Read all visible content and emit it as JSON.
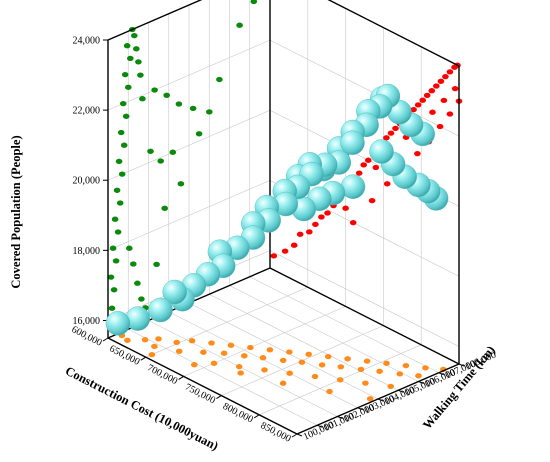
{
  "chart_data": {
    "type": "scatter3d",
    "title": "",
    "xlabel": "Construction Cost (10,000yuan)",
    "ylabel": "Walking Time (km)",
    "zlabel": "Covered Population (People)",
    "x_ticks": [
      "600,000",
      "650,000",
      "700,000",
      "750,000",
      "800,000",
      "850,000"
    ],
    "y_ticks": [
      "100,000",
      "101,000",
      "102,000",
      "103,000",
      "104,000",
      "105,000",
      "106,000",
      "107,000",
      "108,000"
    ],
    "z_ticks": [
      "16,000",
      "18,000",
      "20,000",
      "22,000",
      "24,000"
    ],
    "xlim": [
      600000,
      850000
    ],
    "ylim": [
      100000,
      108000
    ],
    "zlim": [
      15500,
      24000
    ],
    "grid": true,
    "series": [
      {
        "name": "",
        "role": "main-3d",
        "color": "#6cd6d8",
        "marker": "large-sphere",
        "points": [
          [
            605000,
            100300,
            15900
          ],
          [
            618000,
            100800,
            16050
          ],
          [
            632000,
            101400,
            16300
          ],
          [
            645000,
            102000,
            16600
          ],
          [
            640000,
            101800,
            16800
          ],
          [
            652000,
            102300,
            17000
          ],
          [
            660000,
            102700,
            17300
          ],
          [
            672000,
            103000,
            17600
          ],
          [
            665000,
            103100,
            17900
          ],
          [
            680000,
            103400,
            18100
          ],
          [
            690000,
            103800,
            18400
          ],
          [
            685000,
            104000,
            18700
          ],
          [
            700000,
            104200,
            18900
          ],
          [
            695000,
            104300,
            19200
          ],
          [
            712000,
            104600,
            19400
          ],
          [
            708000,
            104700,
            19700
          ],
          [
            720000,
            104900,
            19900
          ],
          [
            715000,
            105100,
            20100
          ],
          [
            730000,
            105200,
            20300
          ],
          [
            725000,
            105300,
            20500
          ],
          [
            740000,
            105500,
            20600
          ],
          [
            735000,
            105600,
            20400
          ],
          [
            750000,
            105800,
            20700
          ],
          [
            745000,
            106000,
            21000
          ],
          [
            760000,
            106100,
            21300
          ],
          [
            755000,
            106300,
            21500
          ],
          [
            768000,
            106500,
            21800
          ],
          [
            765000,
            106700,
            22100
          ],
          [
            775000,
            106900,
            22300
          ],
          [
            780000,
            107100,
            22600
          ],
          [
            770000,
            107200,
            22400
          ],
          [
            790000,
            107300,
            22200
          ],
          [
            800000,
            107500,
            21900
          ],
          [
            810000,
            107700,
            21700
          ],
          [
            785000,
            106600,
            21200
          ],
          [
            795000,
            106800,
            20900
          ],
          [
            805000,
            107000,
            20600
          ],
          [
            815000,
            107300,
            20400
          ],
          [
            820000,
            107600,
            20200
          ],
          [
            825000,
            107800,
            20000
          ],
          [
            758000,
            106200,
            20000
          ],
          [
            745000,
            105700,
            19800
          ],
          [
            735000,
            105400,
            19600
          ],
          [
            725000,
            105000,
            19300
          ]
        ]
      },
      {
        "name": "",
        "role": "projection-xz",
        "color": "#ff0000",
        "marker": "dot",
        "points": [
          [
            605000,
            15900
          ],
          [
            620000,
            16200
          ],
          [
            632000,
            16500
          ],
          [
            640000,
            16900
          ],
          [
            652000,
            17100
          ],
          [
            660000,
            17400
          ],
          [
            668000,
            17700
          ],
          [
            676000,
            17900
          ],
          [
            684000,
            18200
          ],
          [
            690000,
            18500
          ],
          [
            698000,
            18700
          ],
          [
            705000,
            19000
          ],
          [
            712000,
            19300
          ],
          [
            718000,
            19500
          ],
          [
            724000,
            19800
          ],
          [
            730000,
            20000
          ],
          [
            736000,
            20300
          ],
          [
            742000,
            20500
          ],
          [
            748000,
            20700
          ],
          [
            754000,
            20900
          ],
          [
            760000,
            21100
          ],
          [
            766000,
            21300
          ],
          [
            772000,
            21500
          ],
          [
            778000,
            21700
          ],
          [
            784000,
            21900
          ],
          [
            790000,
            22100
          ],
          [
            796000,
            22300
          ],
          [
            802000,
            22500
          ],
          [
            808000,
            22700
          ],
          [
            814000,
            22900
          ],
          [
            820000,
            23100
          ],
          [
            826000,
            23300
          ],
          [
            832000,
            23500
          ],
          [
            838000,
            23700
          ],
          [
            844000,
            23900
          ],
          [
            848000,
            24000
          ],
          [
            700000,
            18300
          ],
          [
            720000,
            19200
          ],
          [
            740000,
            19900
          ],
          [
            760000,
            20500
          ],
          [
            780000,
            21200
          ],
          [
            800000,
            21800
          ],
          [
            815000,
            22300
          ],
          [
            830000,
            22800
          ],
          [
            845000,
            23300
          ],
          [
            710000,
            18000
          ],
          [
            735000,
            18900
          ],
          [
            755000,
            19600
          ],
          [
            775000,
            20200
          ],
          [
            795000,
            20900
          ],
          [
            810000,
            21400
          ],
          [
            825000,
            22000
          ],
          [
            838000,
            22500
          ],
          [
            850000,
            23000
          ]
        ]
      },
      {
        "name": "",
        "role": "projection-yz",
        "color": "#0a8a0a",
        "marker": "dot",
        "points": [
          [
            100100,
            15900
          ],
          [
            100200,
            16300
          ],
          [
            100300,
            16800
          ],
          [
            100150,
            17200
          ],
          [
            100400,
            17600
          ],
          [
            100250,
            18000
          ],
          [
            100500,
            18400
          ],
          [
            100350,
            18800
          ],
          [
            100600,
            19200
          ],
          [
            100450,
            19600
          ],
          [
            100700,
            20000
          ],
          [
            100550,
            20400
          ],
          [
            100800,
            20800
          ],
          [
            100650,
            21200
          ],
          [
            100900,
            21600
          ],
          [
            100750,
            22000
          ],
          [
            101000,
            22400
          ],
          [
            100850,
            22800
          ],
          [
            101100,
            23200
          ],
          [
            100950,
            23600
          ],
          [
            101200,
            24000
          ],
          [
            101300,
            23800
          ],
          [
            101400,
            23400
          ],
          [
            101500,
            23000
          ],
          [
            101600,
            22600
          ],
          [
            102300,
            22000
          ],
          [
            102900,
            21700
          ],
          [
            103500,
            21300
          ],
          [
            104200,
            21000
          ],
          [
            105000,
            20700
          ],
          [
            101700,
            21900
          ],
          [
            102100,
            20300
          ],
          [
            102600,
            19900
          ],
          [
            103200,
            20000
          ],
          [
            101050,
            17800
          ],
          [
            101250,
            17300
          ],
          [
            101450,
            16700
          ],
          [
            101650,
            16200
          ],
          [
            101850,
            15900
          ],
          [
            102400,
            17000
          ],
          [
            102800,
            18500
          ],
          [
            103600,
            19000
          ],
          [
            104500,
            20200
          ],
          [
            105500,
            21500
          ],
          [
            106500,
            22800
          ],
          [
            107200,
            23300
          ]
        ]
      },
      {
        "name": "",
        "role": "projection-xy",
        "color": "#ff8c1a",
        "marker": "dot",
        "points": [
          [
            605000,
            100500
          ],
          [
            615000,
            100400
          ],
          [
            625000,
            100900
          ],
          [
            632000,
            101300
          ],
          [
            640000,
            100800
          ],
          [
            648000,
            101600
          ],
          [
            655000,
            102100
          ],
          [
            662000,
            101200
          ],
          [
            670000,
            102500
          ],
          [
            678000,
            101800
          ],
          [
            685000,
            102900
          ],
          [
            692000,
            102300
          ],
          [
            700000,
            103300
          ],
          [
            708000,
            102700
          ],
          [
            715000,
            103700
          ],
          [
            722000,
            103100
          ],
          [
            730000,
            104100
          ],
          [
            738000,
            103500
          ],
          [
            745000,
            104500
          ],
          [
            752000,
            103900
          ],
          [
            760000,
            104900
          ],
          [
            768000,
            104300
          ],
          [
            775000,
            105300
          ],
          [
            782000,
            104700
          ],
          [
            790000,
            105700
          ],
          [
            798000,
            105100
          ],
          [
            805000,
            106100
          ],
          [
            812000,
            105500
          ],
          [
            820000,
            106500
          ],
          [
            828000,
            105900
          ],
          [
            835000,
            106900
          ],
          [
            842000,
            106300
          ],
          [
            848000,
            107300
          ],
          [
            700000,
            101500
          ],
          [
            720000,
            102000
          ],
          [
            740000,
            102500
          ],
          [
            760000,
            103000
          ],
          [
            780000,
            103500
          ],
          [
            800000,
            104000
          ],
          [
            820000,
            104500
          ],
          [
            840000,
            105000
          ],
          [
            650000,
            100300
          ],
          [
            690000,
            100900
          ],
          [
            730000,
            101700
          ],
          [
            770000,
            102300
          ],
          [
            810000,
            103100
          ],
          [
            845000,
            103800
          ]
        ]
      }
    ]
  }
}
